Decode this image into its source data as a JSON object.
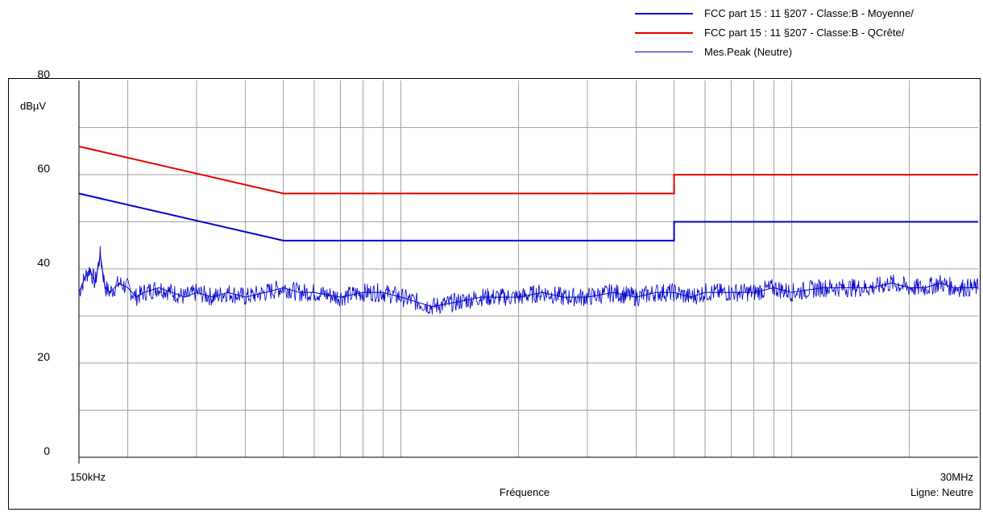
{
  "legend": [
    {
      "label": "FCC part 15 : 11 §207 - Classe:B - Moyenne/",
      "color": "#0000cc",
      "width": "thick"
    },
    {
      "label": "FCC part 15 : 11 §207 - Classe:B - QCrête/",
      "color": "#e00000",
      "width": "thick"
    },
    {
      "label": "Mes.Peak (Neutre)",
      "color": "#0000cc",
      "width": "thin"
    }
  ],
  "chart_data": {
    "type": "line",
    "x_scale": "log",
    "x_unit": "MHz",
    "xlim": [
      0.15,
      30
    ],
    "ylim": [
      0,
      80
    ],
    "y_ticks": [
      0,
      20,
      40,
      60,
      80
    ],
    "y_unit_label": "dBµV",
    "x_tick_labels": [
      "150kHz",
      "30MHz"
    ],
    "xlabel": "Fréquence",
    "line_note": "Ligne: Neutre",
    "grid": true,
    "series": [
      {
        "name": "FCC part 15 : 11 §207 - Classe:B - Moyenne/",
        "color": "#0000cc",
        "x": [
          0.15,
          0.5,
          0.5,
          5,
          5,
          30
        ],
        "y": [
          56,
          46,
          46,
          46,
          50,
          50
        ]
      },
      {
        "name": "FCC part 15 : 11 §207 - Classe:B - QCrête/",
        "color": "#e00000",
        "x": [
          0.15,
          0.5,
          0.5,
          5,
          5,
          30
        ],
        "y": [
          66,
          56,
          56,
          56,
          60,
          60
        ]
      },
      {
        "name": "Mes.Peak (Neutre)",
        "color": "#0000cc",
        "x": [
          0.15,
          0.155,
          0.16,
          0.165,
          0.17,
          0.175,
          0.18,
          0.19,
          0.2,
          0.21,
          0.22,
          0.24,
          0.26,
          0.28,
          0.3,
          0.33,
          0.36,
          0.4,
          0.45,
          0.5,
          0.55,
          0.6,
          0.7,
          0.8,
          0.9,
          1.0,
          1.2,
          1.4,
          1.6,
          1.8,
          2.0,
          2.3,
          2.6,
          3.0,
          3.5,
          4.0,
          4.5,
          5.0,
          5.5,
          6.0,
          7.0,
          8.0,
          9.0,
          10.0,
          12.0,
          14.0,
          16.0,
          18.0,
          20.0,
          22.0,
          24.0,
          26.0,
          28.0,
          30.0
        ],
        "y": [
          35,
          38,
          40,
          37,
          43,
          36,
          35,
          37,
          36,
          34,
          35,
          36,
          35,
          34,
          35,
          34,
          35,
          34,
          35,
          36,
          35,
          35,
          34,
          35,
          35,
          34,
          32,
          33,
          34,
          34,
          34,
          35,
          34,
          34,
          35,
          34,
          35,
          35,
          34,
          35,
          35,
          35,
          36,
          35,
          36,
          36,
          36,
          37,
          36,
          36,
          37,
          36,
          36,
          36
        ]
      }
    ]
  }
}
